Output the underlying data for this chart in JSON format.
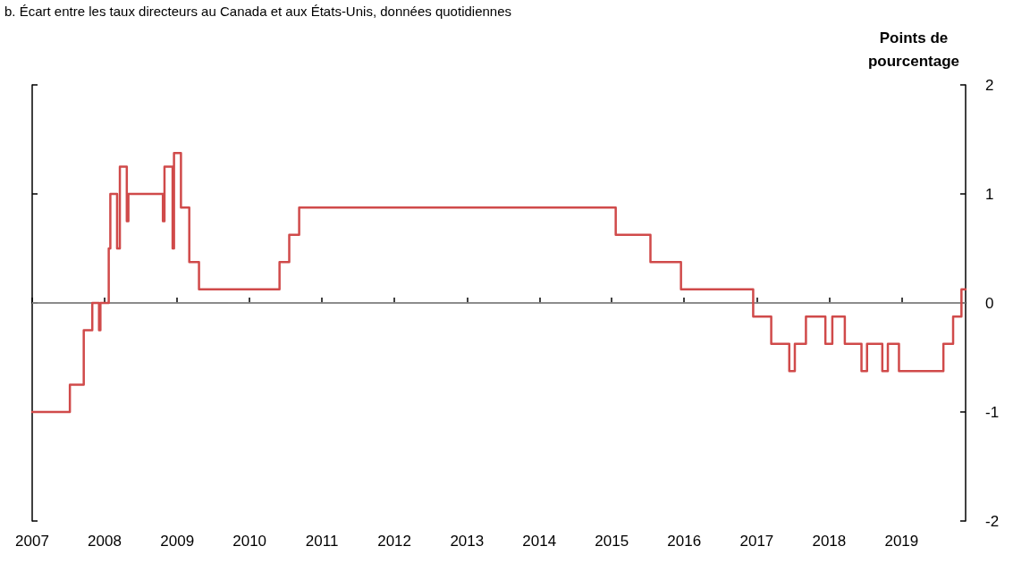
{
  "chart_data": {
    "type": "step",
    "title": "b. Écart entre les taux directeurs au Canada et aux États-Unis, données quotidiennes",
    "ylabel": "Points de\npourcentage",
    "x": [
      "2007-01-01",
      "2007-07-10",
      "2007-09-18",
      "2007-10-31",
      "2007-12-04",
      "2007-12-11",
      "2008-01-22",
      "2008-01-30",
      "2008-03-04",
      "2008-03-18",
      "2008-04-22",
      "2008-04-30",
      "2008-10-21",
      "2008-10-29",
      "2008-12-09",
      "2008-12-16",
      "2009-01-20",
      "2009-03-03",
      "2009-04-21",
      "2010-06-01",
      "2010-07-20",
      "2010-09-08",
      "2015-01-21",
      "2015-07-15",
      "2015-12-16",
      "2016-12-14",
      "2017-03-15",
      "2017-06-14",
      "2017-07-12",
      "2017-09-06",
      "2017-12-13",
      "2018-01-17",
      "2018-03-21",
      "2018-06-13",
      "2018-07-11",
      "2018-09-26",
      "2018-10-24",
      "2018-12-19",
      "2019-07-31",
      "2019-09-18",
      "2019-10-30",
      "2019-11-20"
    ],
    "series": [
      {
        "color": "#d04a4a",
        "values": [
          -1,
          -0.75,
          -0.25,
          0,
          -0.25,
          0,
          0.5,
          1,
          0.5,
          1.25,
          0.75,
          1,
          0.75,
          1.25,
          0.5,
          1.375,
          0.875,
          0.375,
          0.125,
          0.375,
          0.625,
          0.875,
          0.625,
          0.375,
          0.125,
          -0.125,
          -0.375,
          -0.625,
          -0.375,
          -0.125,
          -0.375,
          -0.125,
          -0.375,
          -0.625,
          -0.375,
          -0.625,
          -0.375,
          -0.625,
          -0.375,
          -0.125,
          0.125,
          0.125
        ]
      }
    ],
    "xlim": [
      "2007-01-01",
      "2019-11-20"
    ],
    "xticks": [
      "2007",
      "2008",
      "2009",
      "2010",
      "2011",
      "2012",
      "2013",
      "2014",
      "2015",
      "2016",
      "2017",
      "2018",
      "2019"
    ],
    "ylim": [
      -2,
      2
    ],
    "yticks": [
      -2,
      -1,
      0,
      1,
      2
    ],
    "ref_lines": [
      {
        "axis": "y",
        "value": 0,
        "color": "#a6a6a6"
      }
    ],
    "grid": false,
    "marker": "none",
    "line_style": "solid"
  }
}
